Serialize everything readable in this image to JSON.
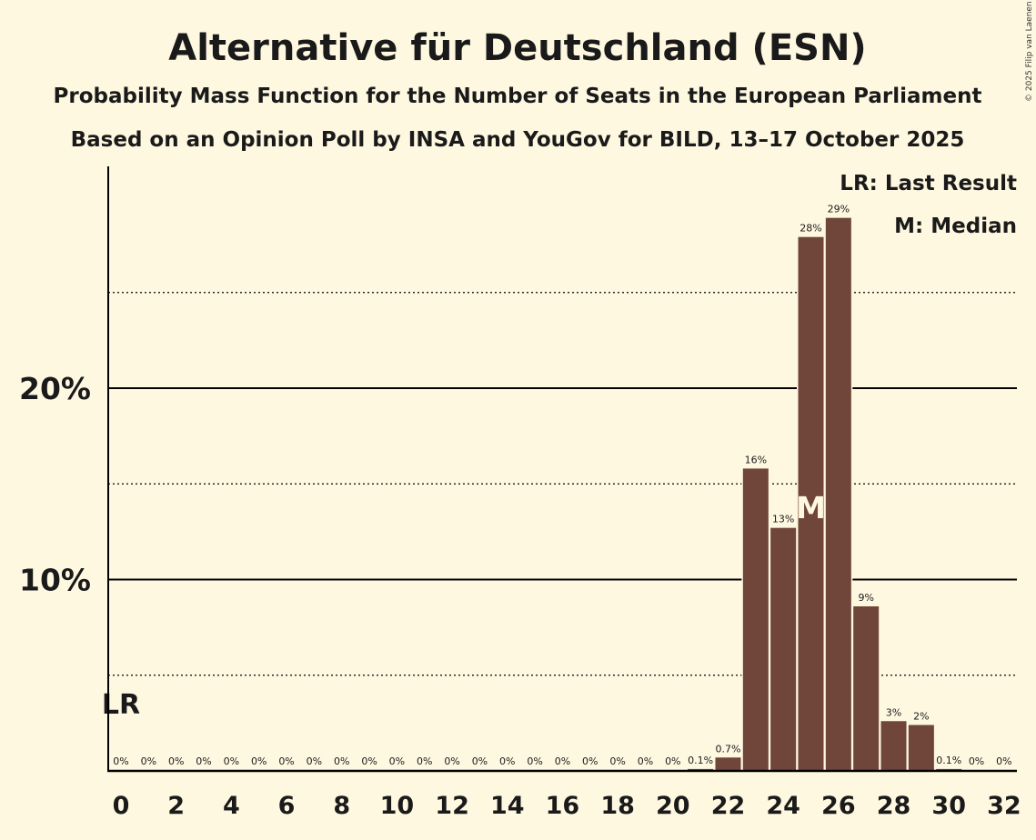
{
  "chart_data": {
    "type": "bar",
    "title": "Alternative für Deutschland (ESN)",
    "subtitle": "Probability Mass Function for the Number of Seats in the European Parliament",
    "subtitle2": "Based on an Opinion Poll by INSA and YouGov for BILD, 13–17 October 2025",
    "copyright": "© 2025 Filip van Laenen",
    "legend": [
      "LR: Last Result",
      "M: Median"
    ],
    "legend_position": "top-right",
    "xlabel": "",
    "ylabel": "",
    "x": [
      0,
      1,
      2,
      3,
      4,
      5,
      6,
      7,
      8,
      9,
      10,
      11,
      12,
      13,
      14,
      15,
      16,
      17,
      18,
      19,
      20,
      21,
      22,
      23,
      24,
      25,
      26,
      27,
      28,
      29,
      30,
      31,
      32
    ],
    "values": [
      0,
      0,
      0,
      0,
      0,
      0,
      0,
      0,
      0,
      0,
      0,
      0,
      0,
      0,
      0,
      0,
      0,
      0,
      0,
      0,
      0,
      0.1,
      0.7,
      15.8,
      12.7,
      27.9,
      28.9,
      8.6,
      2.6,
      2.4,
      0.1,
      0,
      0
    ],
    "labels": [
      "0%",
      "0%",
      "0%",
      "0%",
      "0%",
      "0%",
      "0%",
      "0%",
      "0%",
      "0%",
      "0%",
      "0%",
      "0%",
      "0%",
      "0%",
      "0%",
      "0%",
      "0%",
      "0%",
      "0%",
      "0%",
      "0.1%",
      "0.7%",
      "16%",
      "13%",
      "28%",
      "29%",
      "9%",
      "3%",
      "2%",
      "0.1%",
      "0%",
      "0%"
    ],
    "xticks": [
      "0",
      "2",
      "4",
      "6",
      "8",
      "10",
      "12",
      "14",
      "16",
      "18",
      "20",
      "22",
      "24",
      "26",
      "28",
      "30",
      "32"
    ],
    "yticks": [
      {
        "value": 10,
        "label": "10%"
      },
      {
        "value": 20,
        "label": "20%"
      }
    ],
    "minor_gridlines": [
      5,
      15,
      25
    ],
    "ylim": [
      0,
      31.5
    ],
    "last_result": {
      "seat": 0,
      "label": "LR"
    },
    "median": {
      "seat": 25,
      "label": "M"
    },
    "colors": {
      "bar": "#70463a",
      "background": "#fff8e1",
      "median_text": "#fff8e1"
    }
  }
}
